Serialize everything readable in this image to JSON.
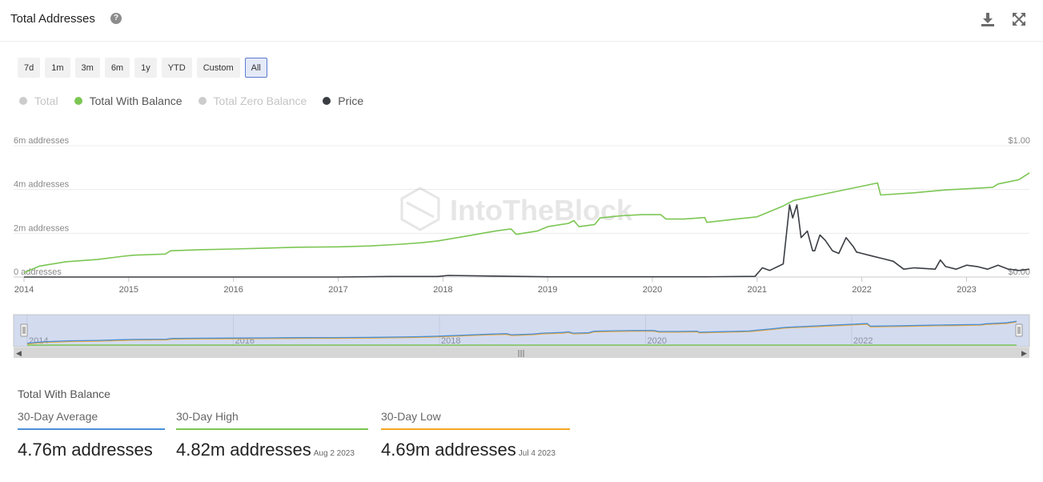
{
  "header": {
    "title": "Total Addresses",
    "help_glyph": "?"
  },
  "icons": {
    "download": "download-icon",
    "expand": "expand-icon",
    "help": "help-icon"
  },
  "ranges": [
    {
      "label": "7d",
      "active": false
    },
    {
      "label": "1m",
      "active": false
    },
    {
      "label": "3m",
      "active": false
    },
    {
      "label": "6m",
      "active": false
    },
    {
      "label": "1y",
      "active": false
    },
    {
      "label": "YTD",
      "active": false
    },
    {
      "label": "Custom",
      "active": false
    },
    {
      "label": "All",
      "active": true
    }
  ],
  "legend": [
    {
      "label": "Total",
      "color": "#cccccc",
      "enabled": false
    },
    {
      "label": "Total With Balance",
      "color": "#7cc653",
      "enabled": true
    },
    {
      "label": "Total Zero Balance",
      "color": "#cccccc",
      "enabled": false
    },
    {
      "label": "Price",
      "color": "#3a3d42",
      "enabled": true
    }
  ],
  "chart_data": {
    "type": "line",
    "watermark": "IntoTheBlock",
    "x_ticks": [
      "2014",
      "2015",
      "2016",
      "2017",
      "2018",
      "2019",
      "2020",
      "2021",
      "2022",
      "2023"
    ],
    "x_range": [
      2014.0,
      2023.6
    ],
    "y_left": {
      "ticks": [
        "0 addresses",
        "2m addresses",
        "4m addresses",
        "6m addresses"
      ],
      "range": [
        0,
        6
      ]
    },
    "y_right": {
      "ticks": [
        "$0.00",
        "$1.00"
      ],
      "range": [
        0,
        1
      ]
    },
    "series": [
      {
        "name": "Total With Balance",
        "color": "#7cc653",
        "unit": "m addresses",
        "x": [
          2014.0,
          2014.15,
          2014.4,
          2014.7,
          2014.95,
          2015.05,
          2015.35,
          2015.4,
          2015.7,
          2016.0,
          2016.3,
          2016.6,
          2017.0,
          2017.3,
          2017.6,
          2017.8,
          2017.95,
          2018.2,
          2018.5,
          2018.65,
          2018.7,
          2018.9,
          2019.0,
          2019.2,
          2019.25,
          2019.3,
          2019.45,
          2019.5,
          2019.7,
          2019.9,
          2020.08,
          2020.13,
          2020.3,
          2020.5,
          2020.52,
          2020.8,
          2021.0,
          2021.1,
          2021.25,
          2021.35,
          2021.6,
          2021.8,
          2022.0,
          2022.15,
          2022.18,
          2022.5,
          2022.8,
          2023.0,
          2023.25,
          2023.3,
          2023.5,
          2023.6
        ],
        "values": [
          0.2,
          0.5,
          0.7,
          0.8,
          0.95,
          1.0,
          1.05,
          1.2,
          1.25,
          1.28,
          1.32,
          1.36,
          1.38,
          1.42,
          1.5,
          1.57,
          1.65,
          1.85,
          2.1,
          2.2,
          1.95,
          2.1,
          2.3,
          2.45,
          2.58,
          2.3,
          2.4,
          2.7,
          2.8,
          2.85,
          2.85,
          2.65,
          2.65,
          2.72,
          2.5,
          2.65,
          2.75,
          2.95,
          3.25,
          3.5,
          3.75,
          3.95,
          4.15,
          4.3,
          3.75,
          3.85,
          3.98,
          4.03,
          4.1,
          4.25,
          4.45,
          4.76
        ]
      },
      {
        "name": "Price",
        "color": "#3a3d42",
        "unit": "$",
        "x": [
          2014.0,
          2017.0,
          2017.5,
          2017.95,
          2018.05,
          2019.0,
          2020.5,
          2020.98,
          2021.05,
          2021.12,
          2021.25,
          2021.31,
          2021.34,
          2021.38,
          2021.42,
          2021.48,
          2021.53,
          2021.55,
          2021.6,
          2021.65,
          2021.72,
          2021.78,
          2021.85,
          2021.92,
          2021.95,
          2022.0,
          2022.1,
          2022.2,
          2022.3,
          2022.4,
          2022.5,
          2022.7,
          2022.75,
          2022.8,
          2022.9,
          2023.0,
          2023.1,
          2023.2,
          2023.3,
          2023.4,
          2023.5,
          2023.6
        ],
        "values": [
          0.0,
          0.0,
          0.004,
          0.004,
          0.012,
          0.002,
          0.002,
          0.005,
          0.07,
          0.05,
          0.1,
          0.55,
          0.45,
          0.55,
          0.3,
          0.35,
          0.2,
          0.2,
          0.32,
          0.28,
          0.2,
          0.18,
          0.3,
          0.23,
          0.19,
          0.18,
          0.16,
          0.14,
          0.12,
          0.06,
          0.07,
          0.06,
          0.13,
          0.08,
          0.06,
          0.09,
          0.08,
          0.06,
          0.09,
          0.06,
          0.05,
          0.06
        ]
      }
    ],
    "navigator": {
      "x_ticks": [
        "2014",
        "2016",
        "2018",
        "2020",
        "2022"
      ],
      "handle_glyph": "|||"
    }
  },
  "stats": {
    "title": "Total With Balance",
    "items": [
      {
        "label": "30-Day Average",
        "value": "4.76m addresses",
        "date": "",
        "color": "#4a90d9"
      },
      {
        "label": "30-Day High",
        "value": "4.82m addresses",
        "date": "Aug 2 2023",
        "color": "#7cc653"
      },
      {
        "label": "30-Day Low",
        "value": "4.69m addresses",
        "date": "Jul 4 2023",
        "color": "#f5a623"
      }
    ]
  }
}
